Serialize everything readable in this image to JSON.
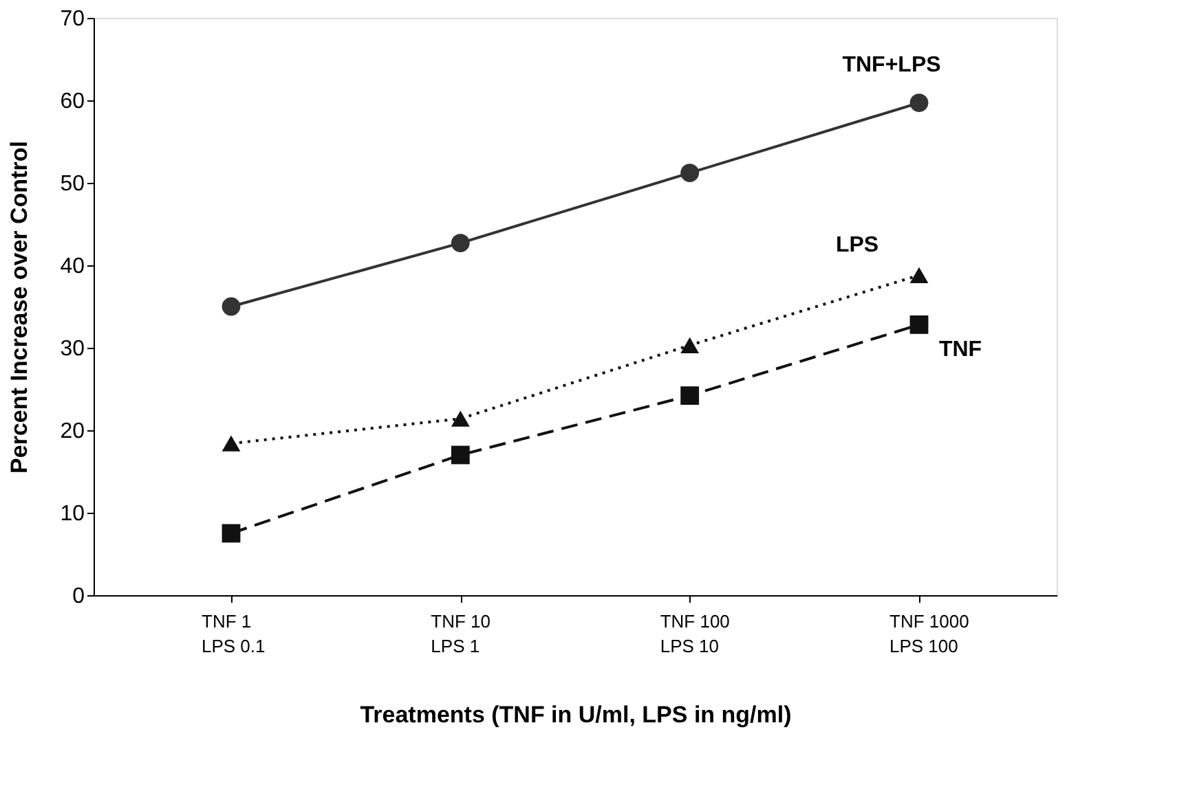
{
  "chart_data": {
    "type": "line",
    "xlabel": "Treatments (TNF in U/ml, LPS in ng/ml)",
    "ylabel": "Percent Increase over Control",
    "categories": [
      "TNF 1\nLPS  0.1",
      "TNF 10\nLPS    1",
      "TNF 100\nLPS   10",
      "TNF 1000\nLPS     100"
    ],
    "series": [
      {
        "name": "TNF+LPS",
        "color": "#333333",
        "values": [
          35.0,
          42.7,
          51.2,
          59.7
        ],
        "marker": "circle",
        "line_style": "solid"
      },
      {
        "name": "LPS",
        "color": "#111111",
        "values": [
          18.4,
          21.4,
          30.3,
          38.8
        ],
        "marker": "triangle",
        "line_style": "dotted"
      },
      {
        "name": "TNF",
        "color": "#111111",
        "values": [
          7.5,
          17.0,
          24.2,
          32.8
        ],
        "marker": "square",
        "line_style": "dashed"
      }
    ],
    "ylim": [
      0,
      70
    ],
    "yticks": [
      0,
      10,
      20,
      30,
      40,
      50,
      60,
      70
    ],
    "grid": false,
    "legend": false
  }
}
